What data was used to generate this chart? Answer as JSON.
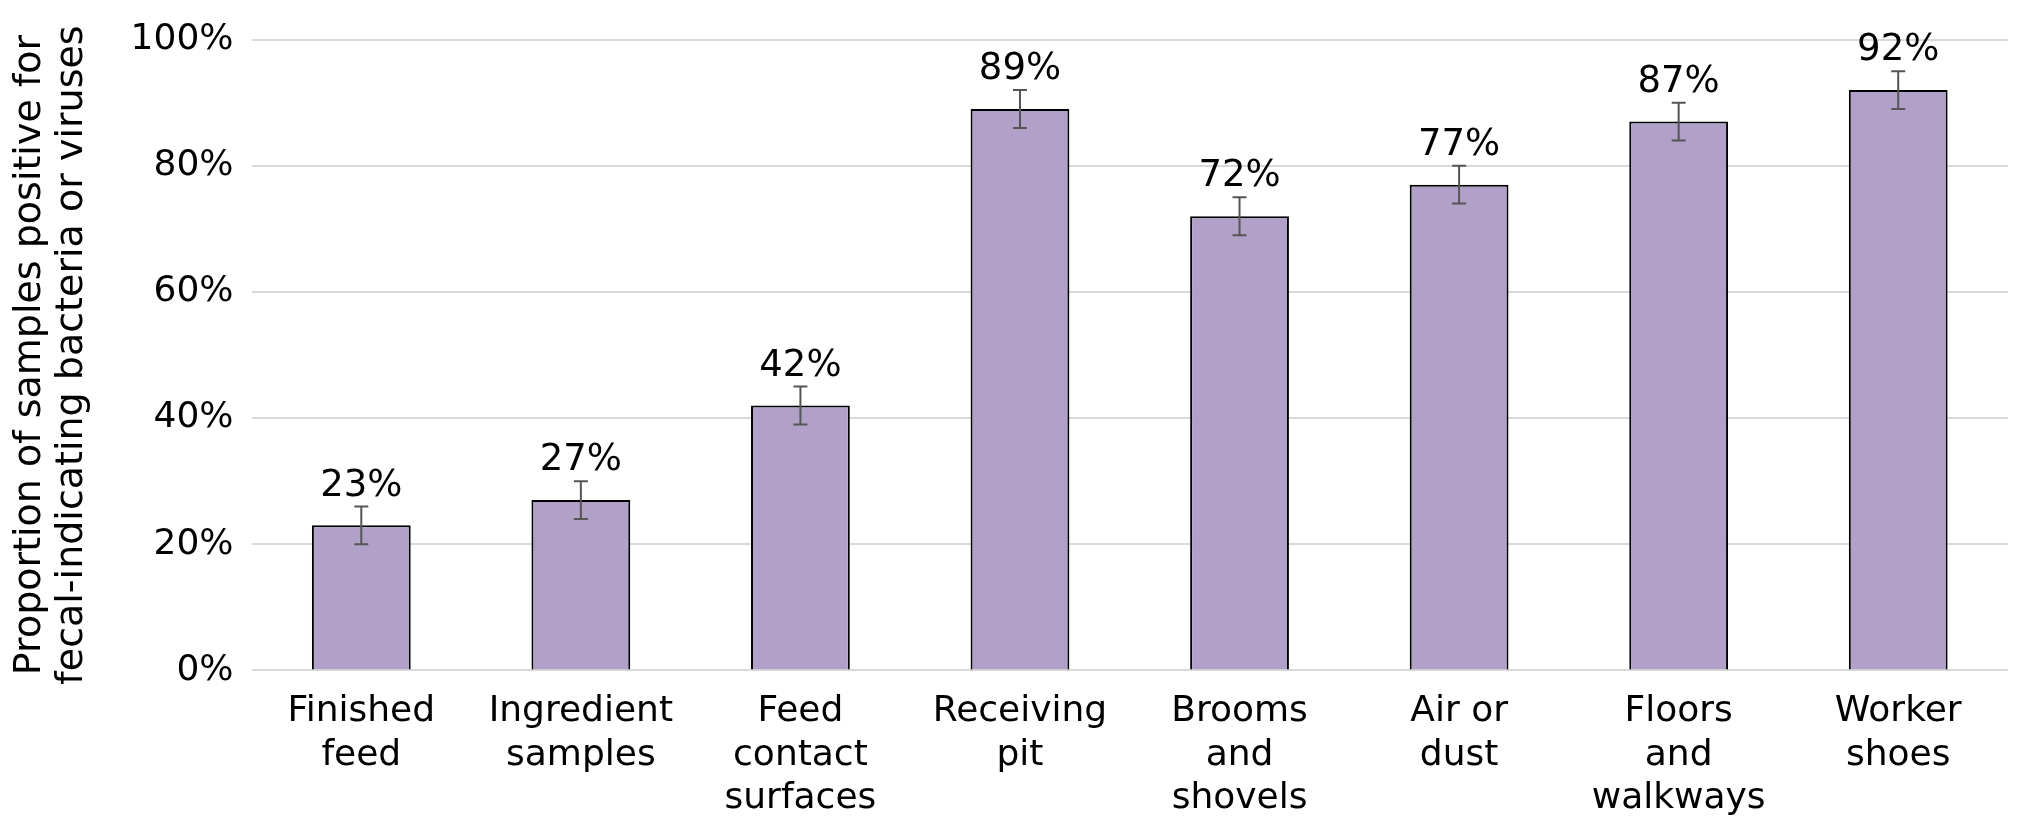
{
  "chart_data": {
    "type": "bar",
    "ylabel": "Proportion of samples positive for\nfecal-indicating bacteria or viruses",
    "categories": [
      "Finished\nfeed",
      "Ingredient\nsamples",
      "Feed\ncontact\nsurfaces",
      "Receiving\npit",
      "Brooms\nand\nshovels",
      "Air or\ndust",
      "Floors\nand\nwalkways",
      "Worker\nshoes"
    ],
    "values": [
      23,
      27,
      42,
      89,
      72,
      77,
      87,
      92
    ],
    "errors": [
      3,
      3,
      3,
      3,
      3,
      3,
      3,
      3
    ],
    "color": "#b1a1c8",
    "value_labels": [
      "23%",
      "27%",
      "42%",
      "89%",
      "72%",
      "77%",
      "87%",
      "92%"
    ],
    "ylim": [
      0,
      100
    ],
    "yticks": [
      {
        "value": 0,
        "label": "0%"
      },
      {
        "value": 20,
        "label": "20%"
      },
      {
        "value": 40,
        "label": "40%"
      },
      {
        "value": 60,
        "label": "60%"
      },
      {
        "value": 80,
        "label": "80%"
      },
      {
        "value": 100,
        "label": "100%"
      }
    ],
    "grid": "y",
    "legend": false
  }
}
